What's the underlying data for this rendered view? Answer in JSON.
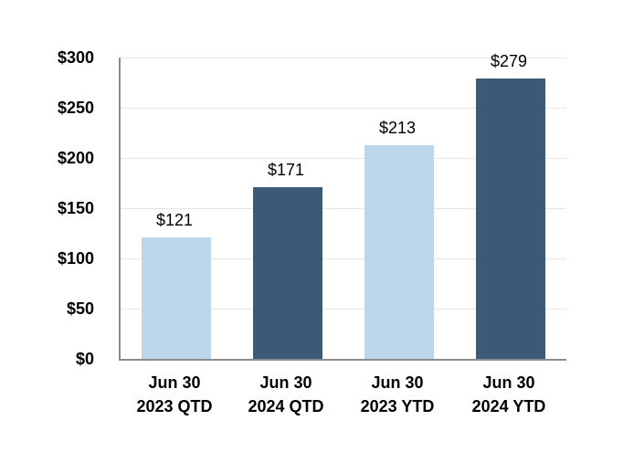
{
  "chart_data": {
    "type": "bar",
    "title": "",
    "categories": [
      [
        "Jun 30",
        "2023 QTD"
      ],
      [
        "Jun 30",
        "2024 QTD"
      ],
      [
        "Jun 30",
        "2023 YTD"
      ],
      [
        "Jun 30",
        "2024 YTD"
      ]
    ],
    "series": [
      {
        "name": "Amount",
        "values": [
          121,
          171,
          213,
          279
        ]
      }
    ],
    "values": [
      121,
      171,
      213,
      279
    ],
    "data_labels": [
      "$121",
      "$171",
      "$213",
      "$279"
    ],
    "bar_colors": [
      "#BCD6EB",
      "#3A5A78",
      "#BCD6EB",
      "#3A5A78"
    ],
    "y_ticks": [
      "$0",
      "$50",
      "$100",
      "$150",
      "$200",
      "$250",
      "$300"
    ],
    "y_tick_values": [
      0,
      50,
      100,
      150,
      200,
      250,
      300
    ],
    "ylim": [
      0,
      300
    ],
    "y_tick_step": 50,
    "xlabel": "",
    "ylabel": "",
    "grid": "horizontal",
    "legend": "none"
  },
  "colors": {
    "light_blue": "#BCD6EB",
    "dark_blue": "#3A5A78",
    "gridline": "#E6E6E6",
    "axis": "#8C8C8C",
    "text": "#000000",
    "background": "#FFFFFF"
  }
}
